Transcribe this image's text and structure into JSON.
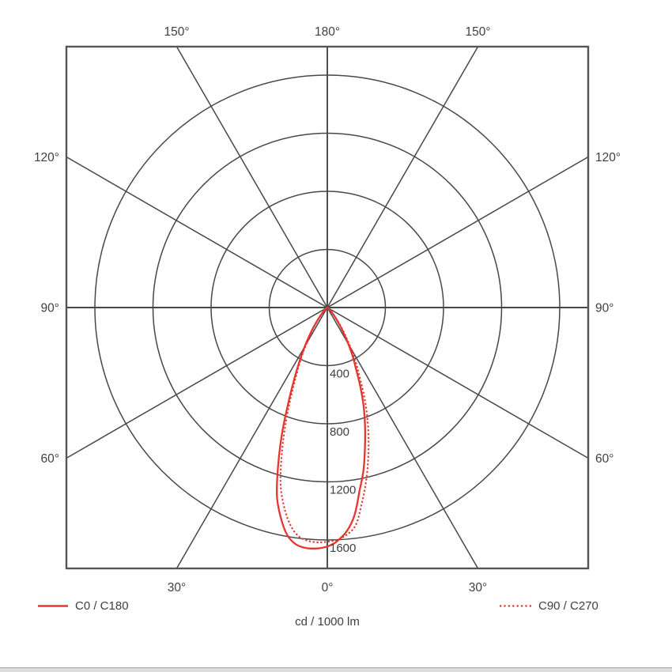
{
  "page": {
    "background": "#ffffff"
  },
  "legend": [
    {
      "label": "C0 / C180",
      "style": "solid"
    },
    {
      "label": "C90 / C270",
      "style": "dotted"
    }
  ],
  "chart_data": {
    "type": "polar",
    "subtype": "photometric-luminous-intensity-distribution",
    "caption": "cd / 1000 lm",
    "angle_unit": "degrees",
    "angle_grid_step_deg": 30,
    "zero_direction": "down",
    "radial_ticks": [
      400,
      800,
      1200,
      1600
    ],
    "radial_tick_labels": [
      "400",
      "800",
      "1200",
      "1600"
    ],
    "rmax": 1800,
    "grid_on": true,
    "grid_color": "#474747",
    "frame_color": "#555555",
    "text_color": "#3f3f3f",
    "accent_color": "#e6352e",
    "legend_position": "bottom",
    "angle_labels": [
      {
        "text": "180°",
        "position": "top-center"
      },
      {
        "text": "150°",
        "position": "top-left"
      },
      {
        "text": "150°",
        "position": "top-right"
      },
      {
        "text": "120°",
        "position": "left-upper"
      },
      {
        "text": "120°",
        "position": "right-upper"
      },
      {
        "text": "90°",
        "position": "left-middle"
      },
      {
        "text": "90°",
        "position": "right-middle"
      },
      {
        "text": "60°",
        "position": "left-lower"
      },
      {
        "text": "60°",
        "position": "right-lower"
      },
      {
        "text": "30°",
        "position": "bottom-left"
      },
      {
        "text": "30°",
        "position": "bottom-right"
      },
      {
        "text": "0°",
        "position": "bottom-center"
      }
    ],
    "series": [
      {
        "name": "C0 / C180",
        "style": "solid",
        "color": "#e6352e",
        "points_gamma_deg_vs_cd_per_klm": [
          [
            -60,
            0
          ],
          [
            -55,
            5
          ],
          [
            -50,
            14
          ],
          [
            -45,
            33
          ],
          [
            -40,
            78
          ],
          [
            -35,
            165
          ],
          [
            -32.5,
            230
          ],
          [
            -30,
            310
          ],
          [
            -27.5,
            410
          ],
          [
            -25,
            530
          ],
          [
            -22.5,
            690
          ],
          [
            -20,
            900
          ],
          [
            -17.5,
            1120
          ],
          [
            -15,
            1340
          ],
          [
            -12.5,
            1480
          ],
          [
            -10,
            1590
          ],
          [
            -7.5,
            1645
          ],
          [
            -5,
            1662
          ],
          [
            -2.5,
            1660
          ],
          [
            -1.25,
            1654
          ],
          [
            0,
            1645
          ],
          [
            1.25,
            1630
          ],
          [
            2.5,
            1608
          ],
          [
            5,
            1545
          ],
          [
            7.5,
            1440
          ],
          [
            10,
            1280
          ],
          [
            12.5,
            1150
          ],
          [
            15,
            1000
          ],
          [
            17.5,
            865
          ],
          [
            20,
            735
          ],
          [
            22.5,
            600
          ],
          [
            25,
            470
          ],
          [
            27.5,
            380
          ],
          [
            30,
            290
          ],
          [
            32.5,
            215
          ],
          [
            35,
            155
          ],
          [
            40,
            75
          ],
          [
            45,
            33
          ],
          [
            50,
            14
          ],
          [
            55,
            5
          ],
          [
            60,
            0
          ]
        ]
      },
      {
        "name": "C90 / C270",
        "style": "dotted",
        "color": "#e6352e",
        "points_gamma_deg_vs_cd_per_klm": [
          [
            -60,
            0
          ],
          [
            -55,
            4
          ],
          [
            -50,
            11
          ],
          [
            -45,
            28
          ],
          [
            -40,
            68
          ],
          [
            -35,
            150
          ],
          [
            -32.5,
            212
          ],
          [
            -30,
            290
          ],
          [
            -27.5,
            385
          ],
          [
            -25,
            490
          ],
          [
            -22.5,
            640
          ],
          [
            -20,
            830
          ],
          [
            -17.5,
            1035
          ],
          [
            -15,
            1245
          ],
          [
            -12.5,
            1390
          ],
          [
            -10,
            1505
          ],
          [
            -7.5,
            1580
          ],
          [
            -5,
            1610
          ],
          [
            -2.5,
            1618
          ],
          [
            -1.25,
            1616
          ],
          [
            0,
            1612
          ],
          [
            1.25,
            1607
          ],
          [
            2.5,
            1600
          ],
          [
            5,
            1568
          ],
          [
            7.5,
            1508
          ],
          [
            10,
            1368
          ],
          [
            12.5,
            1230
          ],
          [
            15,
            1085
          ],
          [
            17.5,
            945
          ],
          [
            20,
            805
          ],
          [
            22.5,
            665
          ],
          [
            25,
            525
          ],
          [
            27.5,
            425
          ],
          [
            30,
            325
          ],
          [
            32.5,
            240
          ],
          [
            35,
            175
          ],
          [
            40,
            85
          ],
          [
            45,
            38
          ],
          [
            50,
            16
          ],
          [
            55,
            6
          ],
          [
            60,
            0
          ]
        ]
      }
    ]
  }
}
